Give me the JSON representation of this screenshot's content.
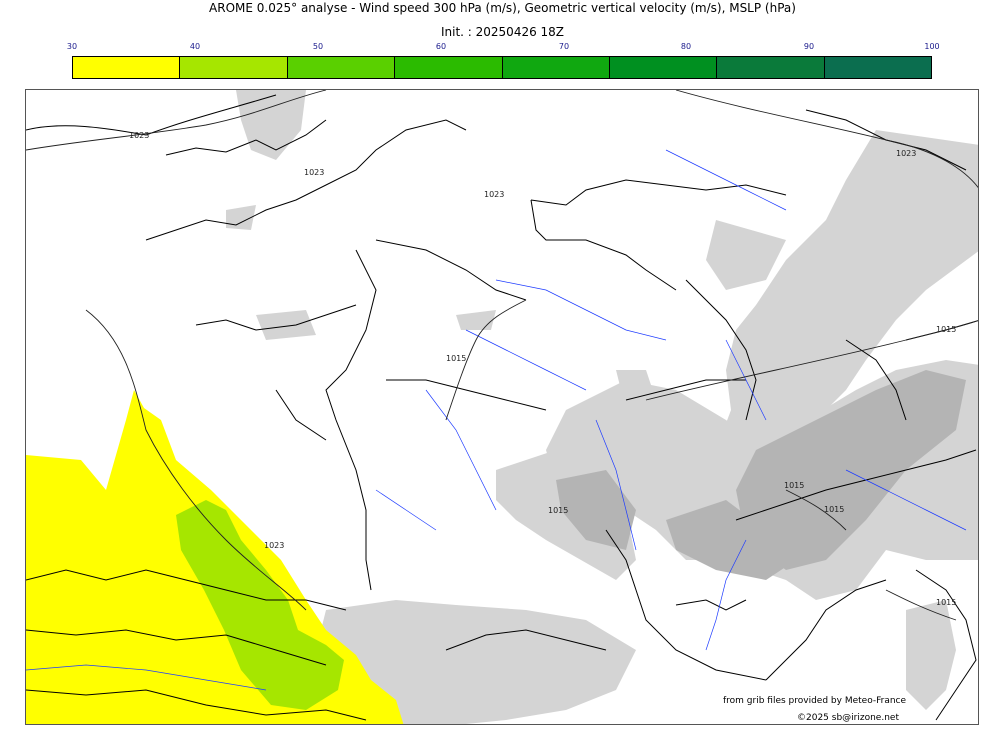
{
  "header": {
    "title": "AROME 0.025° analyse - Wind speed 300 hPa (m/s), Geometric vertical velocity (m/s), MSLP (hPa)",
    "init": "Init. : 20250426 18Z"
  },
  "colorbar": {
    "ticks": [
      "30",
      "40",
      "50",
      "60",
      "70",
      "80",
      "90",
      "100"
    ],
    "colors": [
      "#ffff00",
      "#a6e600",
      "#5ad000",
      "#2bbb00",
      "#10a810",
      "#009020",
      "#0a7a3a",
      "#0b6e4f"
    ]
  },
  "map": {
    "isobar_labels": [
      "1023",
      "1023",
      "1023",
      "1023",
      "1015",
      "1015",
      "1023",
      "1015",
      "1015",
      "1015",
      "1015"
    ]
  },
  "footer": {
    "source": "from grib files provided by Meteo-France",
    "copyright": "©2025 sb@irizone.net"
  }
}
